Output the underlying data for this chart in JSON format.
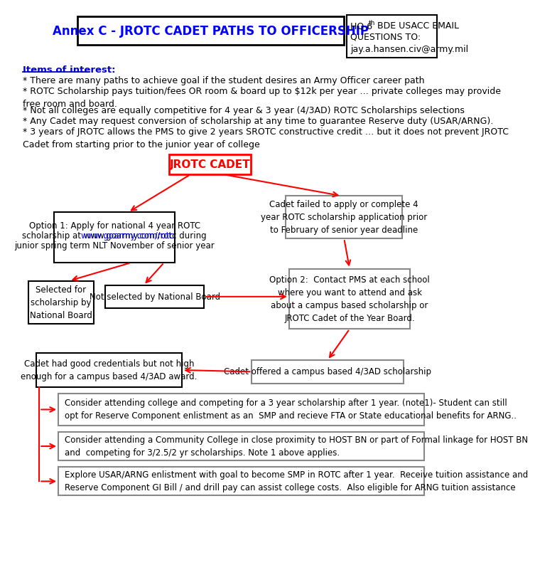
{
  "title": "Annex C - JROTC CADET PATHS TO OFFICERSHIP",
  "hq_line1": "HQ 6",
  "hq_line1_sup": "th",
  "hq_line1_rest": " BDE USACC EMAIL",
  "hq_line2": "QUESTIONS TO:",
  "hq_line3": "jay.a.hansen.civ@army.mil",
  "items_header": "Items of interest:",
  "bullet1": "* There are many paths to achieve goal if the student desires an Army Officer career path",
  "bullet2": "* ROTC Scholarship pays tuition/fees OR room & board up to $12k per year … private colleges may provide\nfree room and board.",
  "bullet3": "* Not all colleges are equally competitive for 4 year & 3 year (4/3AD) ROTC Scholarships selections",
  "bullet4": "* Any Cadet may request conversion of scholarship at any time to guarantee Reserve duty (USAR/ARNG).",
  "bullet5": "* 3 years of JROTC allows the PMS to give 2 years SROTC constructive credit … but it does not prevent JROTC\nCadet from starting prior to the junior year of college",
  "node_jrotc": "JROTC CADET",
  "node_opt1_l1": "Option 1: Apply for national 4 year ROTC",
  "node_opt1_l2a": "scholarship at ",
  "node_opt1_l2b": "www.goarmy.com/rotc",
  "node_opt1_l2c": " during",
  "node_opt1_l3": "junior spring term NLT November of senior year",
  "node_failed": "Cadet failed to apply or complete 4\nyear ROTC scholarship application prior\nto February of senior year deadline",
  "node_selected": "Selected for\nscholarship by\nNational Board",
  "node_notselected": "Not selected by National Board",
  "node_opt2": "Option 2:  Contact PMS at each school\nwhere you want to attend and ask\nabout a campus based scholarship or\nJROTC Cadet of the Year Board.",
  "node_goodcreds": "Cadet had good credentials but not high\nenough for a campus based 4/3AD award.",
  "node_offered": "Cadet offered a campus based 4/3AD scholarship",
  "box1_text": "Consider attending college and competing for a 3 year scholarship after 1 year. (note1)- Student can still\nopt for Reserve Component enlistment as an  SMP and recieve FTA or State educational benefits for ARNG..",
  "box2_text": "Consider attending a Community College in close proximity to HOST BN or part of Formal linkage for HOST BN\nand  competing for 3/2.5/2 yr scholarships. Note 1 above applies.",
  "box3_text": "Explore USAR/ARNG enlistment with goal to become SMP in ROTC after 1 year.  Receive tuition assistance and\nReserve Component GI Bill / and drill pay can assist college costs.  Also eligible for ARNG tuition assistance",
  "red": "#FF0000",
  "blue": "#0000FF",
  "dark_blue": "#0000CC",
  "black": "#000000",
  "gray": "#888888",
  "white": "#FFFFFF"
}
